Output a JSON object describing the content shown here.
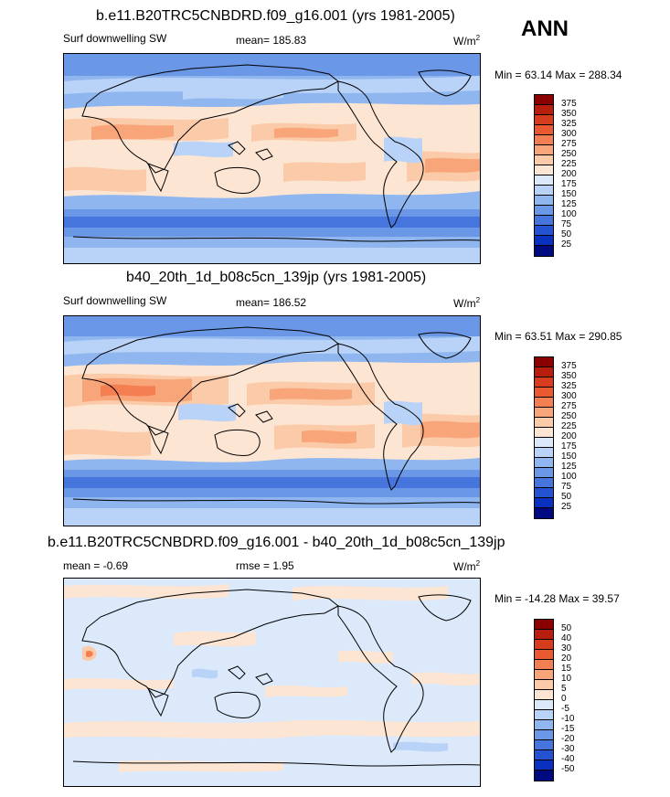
{
  "season": "ANN",
  "panels": [
    {
      "title": "b.e11.B20TRC5CNBDRD.f09_g16.001 (yrs 1981-2005)",
      "variable": "Surf downwelling SW",
      "mean": "mean= 185.83",
      "units_base": "W/m",
      "units_exp": "2",
      "minmax": "Min =  63.14 Max = 288.34",
      "colorbar_labels": [
        "375",
        "350",
        "325",
        "300",
        "275",
        "250",
        "225",
        "200",
        "175",
        "150",
        "125",
        "100",
        "75",
        "50",
        "25"
      ]
    },
    {
      "title": "b40_20th_1d_b08c5cn_139jp (yrs 1981-2005)",
      "variable": "Surf downwelling SW",
      "mean": "mean= 186.52",
      "units_base": "W/m",
      "units_exp": "2",
      "minmax": "Min =  63.51 Max = 290.85",
      "colorbar_labels": [
        "375",
        "350",
        "325",
        "300",
        "275",
        "250",
        "225",
        "200",
        "175",
        "150",
        "125",
        "100",
        "75",
        "50",
        "25"
      ]
    },
    {
      "title": "b.e11.B20TRC5CNBDRD.f09_g16.001 - b40_20th_1d_b08c5cn_139jp",
      "mean": "mean =  -0.69",
      "rmse": "rmse =   1.95",
      "units_base": "W/m",
      "units_exp": "2",
      "minmax": "Min = -14.28 Max =  39.57",
      "colorbar_labels": [
        "50",
        "40",
        "30",
        "20",
        "15",
        "10",
        "5",
        "0",
        "-5",
        "-10",
        "-15",
        "-20",
        "-30",
        "-40",
        "-50"
      ]
    }
  ],
  "colors": {
    "scale": [
      "#8b0000",
      "#b81e0e",
      "#d73c1e",
      "#ea5a32",
      "#f47f52",
      "#f9a57a",
      "#fbcaa8",
      "#fde5d3",
      "#dce9fb",
      "#b8d3f7",
      "#8fb6ef",
      "#6a97e6",
      "#4676dd",
      "#2452d3",
      "#0a30c0",
      "#000a80"
    ]
  }
}
